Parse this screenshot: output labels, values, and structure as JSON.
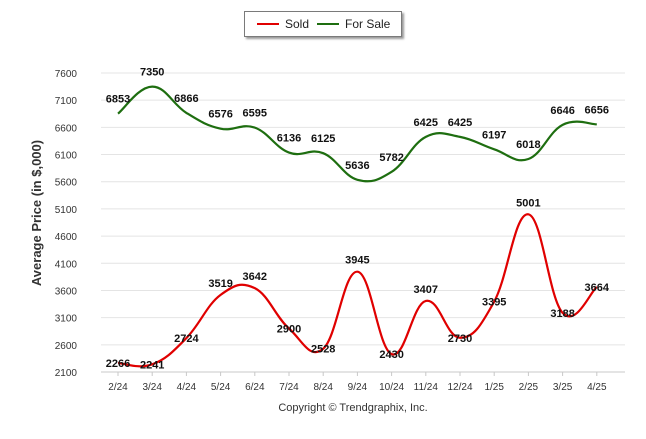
{
  "legend": {
    "sold_label": "Sold",
    "forsale_label": "For Sale"
  },
  "copyright": "Copyright © Trendgraphix, Inc.",
  "chart_data": {
    "type": "line",
    "title": "",
    "ylabel": "Average Price (in $,000)",
    "xlabel": "",
    "categories": [
      "2/24",
      "3/24",
      "4/24",
      "5/24",
      "6/24",
      "7/24",
      "8/24",
      "9/24",
      "10/24",
      "11/24",
      "12/24",
      "1/25",
      "2/25",
      "3/25",
      "4/25"
    ],
    "y_ticks": [
      2100,
      2600,
      3100,
      3600,
      4100,
      4600,
      5100,
      5600,
      6100,
      6600,
      7100,
      7600
    ],
    "ylim": [
      2100,
      7600
    ],
    "grid": true,
    "legend_position": "top",
    "series": [
      {
        "name": "Sold",
        "color": "#e00000",
        "values": [
          2266,
          2241,
          2724,
          3519,
          3642,
          2900,
          2528,
          3945,
          2430,
          3407,
          2730,
          3395,
          5001,
          3188,
          3664
        ]
      },
      {
        "name": "For Sale",
        "color": "#1e6e10",
        "values": [
          6853,
          7350,
          6866,
          6576,
          6595,
          6136,
          6125,
          5636,
          5782,
          6425,
          6425,
          6197,
          6018,
          6646,
          6656
        ]
      }
    ]
  }
}
